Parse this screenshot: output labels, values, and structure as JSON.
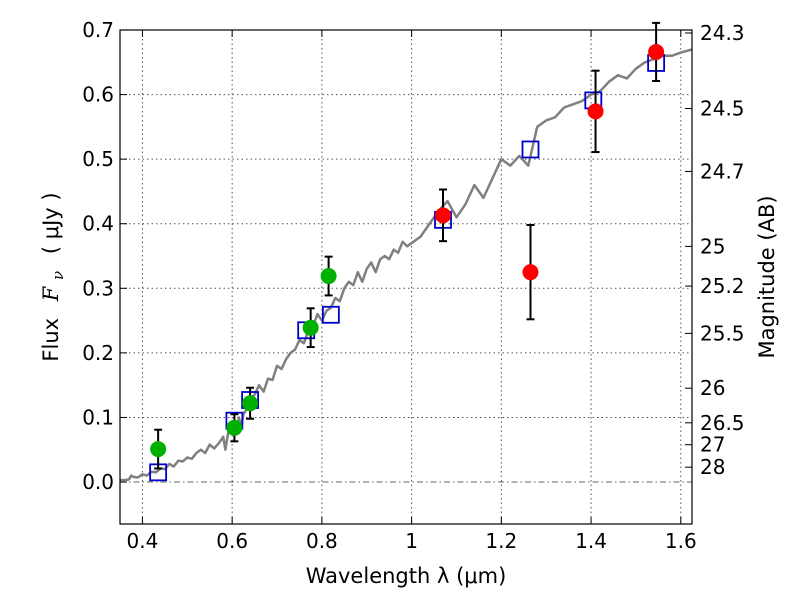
{
  "chart_data": {
    "type": "scatter",
    "xlabel": "Wavelength  λ (μm)",
    "ylabel_text": "Flux",
    "ylabel_symbol": "F",
    "ylabel_sub": "ν",
    "ylabel_unit": "( μJy )",
    "y2label": "Magnitude (AB)",
    "xlim": [
      0.35,
      1.625
    ],
    "ylim": [
      -0.065,
      0.7
    ],
    "xticks": [
      0.4,
      0.6,
      0.8,
      1.0,
      1.2,
      1.4,
      1.6
    ],
    "xtick_labels": [
      "0.4",
      "0.6",
      "0.8",
      "1",
      "1.2",
      "1.4",
      "1.6"
    ],
    "yticks": [
      0.0,
      0.1,
      0.2,
      0.3,
      0.4,
      0.5,
      0.6,
      0.7
    ],
    "ytick_labels": [
      "0.0",
      "0.1",
      "0.2",
      "0.3",
      "0.4",
      "0.5",
      "0.6",
      "0.7"
    ],
    "y2ticks": [
      {
        "label": "24.3",
        "flux": 0.6954
      },
      {
        "label": "24.5",
        "flux": 0.5784
      },
      {
        "label": "24.7",
        "flux": 0.481
      },
      {
        "label": "25",
        "flux": 0.3649
      },
      {
        "label": "25.2",
        "flux": 0.3035
      },
      {
        "label": "25.5",
        "flux": 0.2302
      },
      {
        "label": "26",
        "flux": 0.1453
      },
      {
        "label": "26.5",
        "flux": 0.0917
      },
      {
        "label": "27",
        "flux": 0.0578
      },
      {
        "label": "28",
        "flux": 0.023
      }
    ],
    "grid": true,
    "zero_line": true,
    "series": [
      {
        "kind": "model_spectrum",
        "color": "#808080",
        "x": [
          0.35,
          0.36,
          0.37,
          0.375,
          0.38,
          0.39,
          0.4,
          0.41,
          0.42,
          0.43,
          0.44,
          0.45,
          0.46,
          0.47,
          0.48,
          0.49,
          0.5,
          0.51,
          0.52,
          0.53,
          0.54,
          0.55,
          0.56,
          0.57,
          0.58,
          0.585,
          0.59,
          0.595,
          0.6,
          0.605,
          0.61,
          0.615,
          0.62,
          0.625,
          0.63,
          0.64,
          0.65,
          0.66,
          0.67,
          0.68,
          0.69,
          0.7,
          0.71,
          0.72,
          0.73,
          0.74,
          0.75,
          0.76,
          0.77,
          0.78,
          0.79,
          0.8,
          0.81,
          0.82,
          0.83,
          0.84,
          0.85,
          0.86,
          0.87,
          0.88,
          0.89,
          0.9,
          0.91,
          0.92,
          0.93,
          0.94,
          0.95,
          0.96,
          0.97,
          0.98,
          0.99,
          1.0,
          1.02,
          1.04,
          1.06,
          1.08,
          1.1,
          1.12,
          1.14,
          1.16,
          1.18,
          1.2,
          1.22,
          1.24,
          1.26,
          1.28,
          1.3,
          1.32,
          1.34,
          1.36,
          1.38,
          1.4,
          1.42,
          1.44,
          1.46,
          1.48,
          1.5,
          1.52,
          1.54,
          1.56,
          1.58,
          1.6,
          1.625
        ],
        "y": [
          0.003,
          0.003,
          0.004,
          0.01,
          0.008,
          0.007,
          0.012,
          0.01,
          0.016,
          0.015,
          0.021,
          0.02,
          0.028,
          0.024,
          0.033,
          0.032,
          0.038,
          0.036,
          0.045,
          0.05,
          0.045,
          0.058,
          0.052,
          0.06,
          0.07,
          0.05,
          0.072,
          0.09,
          0.075,
          0.095,
          0.078,
          0.1,
          0.085,
          0.105,
          0.11,
          0.13,
          0.135,
          0.15,
          0.14,
          0.16,
          0.158,
          0.18,
          0.175,
          0.19,
          0.2,
          0.205,
          0.22,
          0.215,
          0.235,
          0.24,
          0.26,
          0.25,
          0.265,
          0.27,
          0.285,
          0.28,
          0.3,
          0.31,
          0.305,
          0.325,
          0.31,
          0.33,
          0.34,
          0.325,
          0.345,
          0.35,
          0.345,
          0.36,
          0.355,
          0.372,
          0.365,
          0.37,
          0.38,
          0.4,
          0.42,
          0.435,
          0.41,
          0.43,
          0.46,
          0.44,
          0.47,
          0.5,
          0.49,
          0.505,
          0.49,
          0.55,
          0.56,
          0.565,
          0.58,
          0.585,
          0.59,
          0.6,
          0.605,
          0.62,
          0.63,
          0.625,
          0.64,
          0.65,
          0.655,
          0.66,
          0.66,
          0.665,
          0.67
        ]
      },
      {
        "kind": "model_points",
        "marker": "square",
        "color": "#0000cc",
        "x": [
          0.435,
          0.605,
          0.64,
          0.765,
          0.82,
          1.07,
          1.265,
          1.405,
          1.545
        ],
        "y": [
          0.015,
          0.095,
          0.127,
          0.235,
          0.259,
          0.406,
          0.515,
          0.591,
          0.649
        ]
      },
      {
        "kind": "observed",
        "marker": "circle",
        "color": "#00b000",
        "x": [
          0.435,
          0.605,
          0.64,
          0.775,
          0.815
        ],
        "y": [
          0.051,
          0.084,
          0.122,
          0.239,
          0.319
        ],
        "yerr": [
          0.03,
          0.021,
          0.024,
          0.03,
          0.03
        ]
      },
      {
        "kind": "observed",
        "marker": "circle",
        "color": "#ff0000",
        "x": [
          1.07,
          1.265,
          1.41,
          1.545
        ],
        "y": [
          0.413,
          0.325,
          0.574,
          0.666
        ],
        "yerr": [
          0.04,
          0.073,
          0.063,
          0.045
        ]
      }
    ]
  }
}
